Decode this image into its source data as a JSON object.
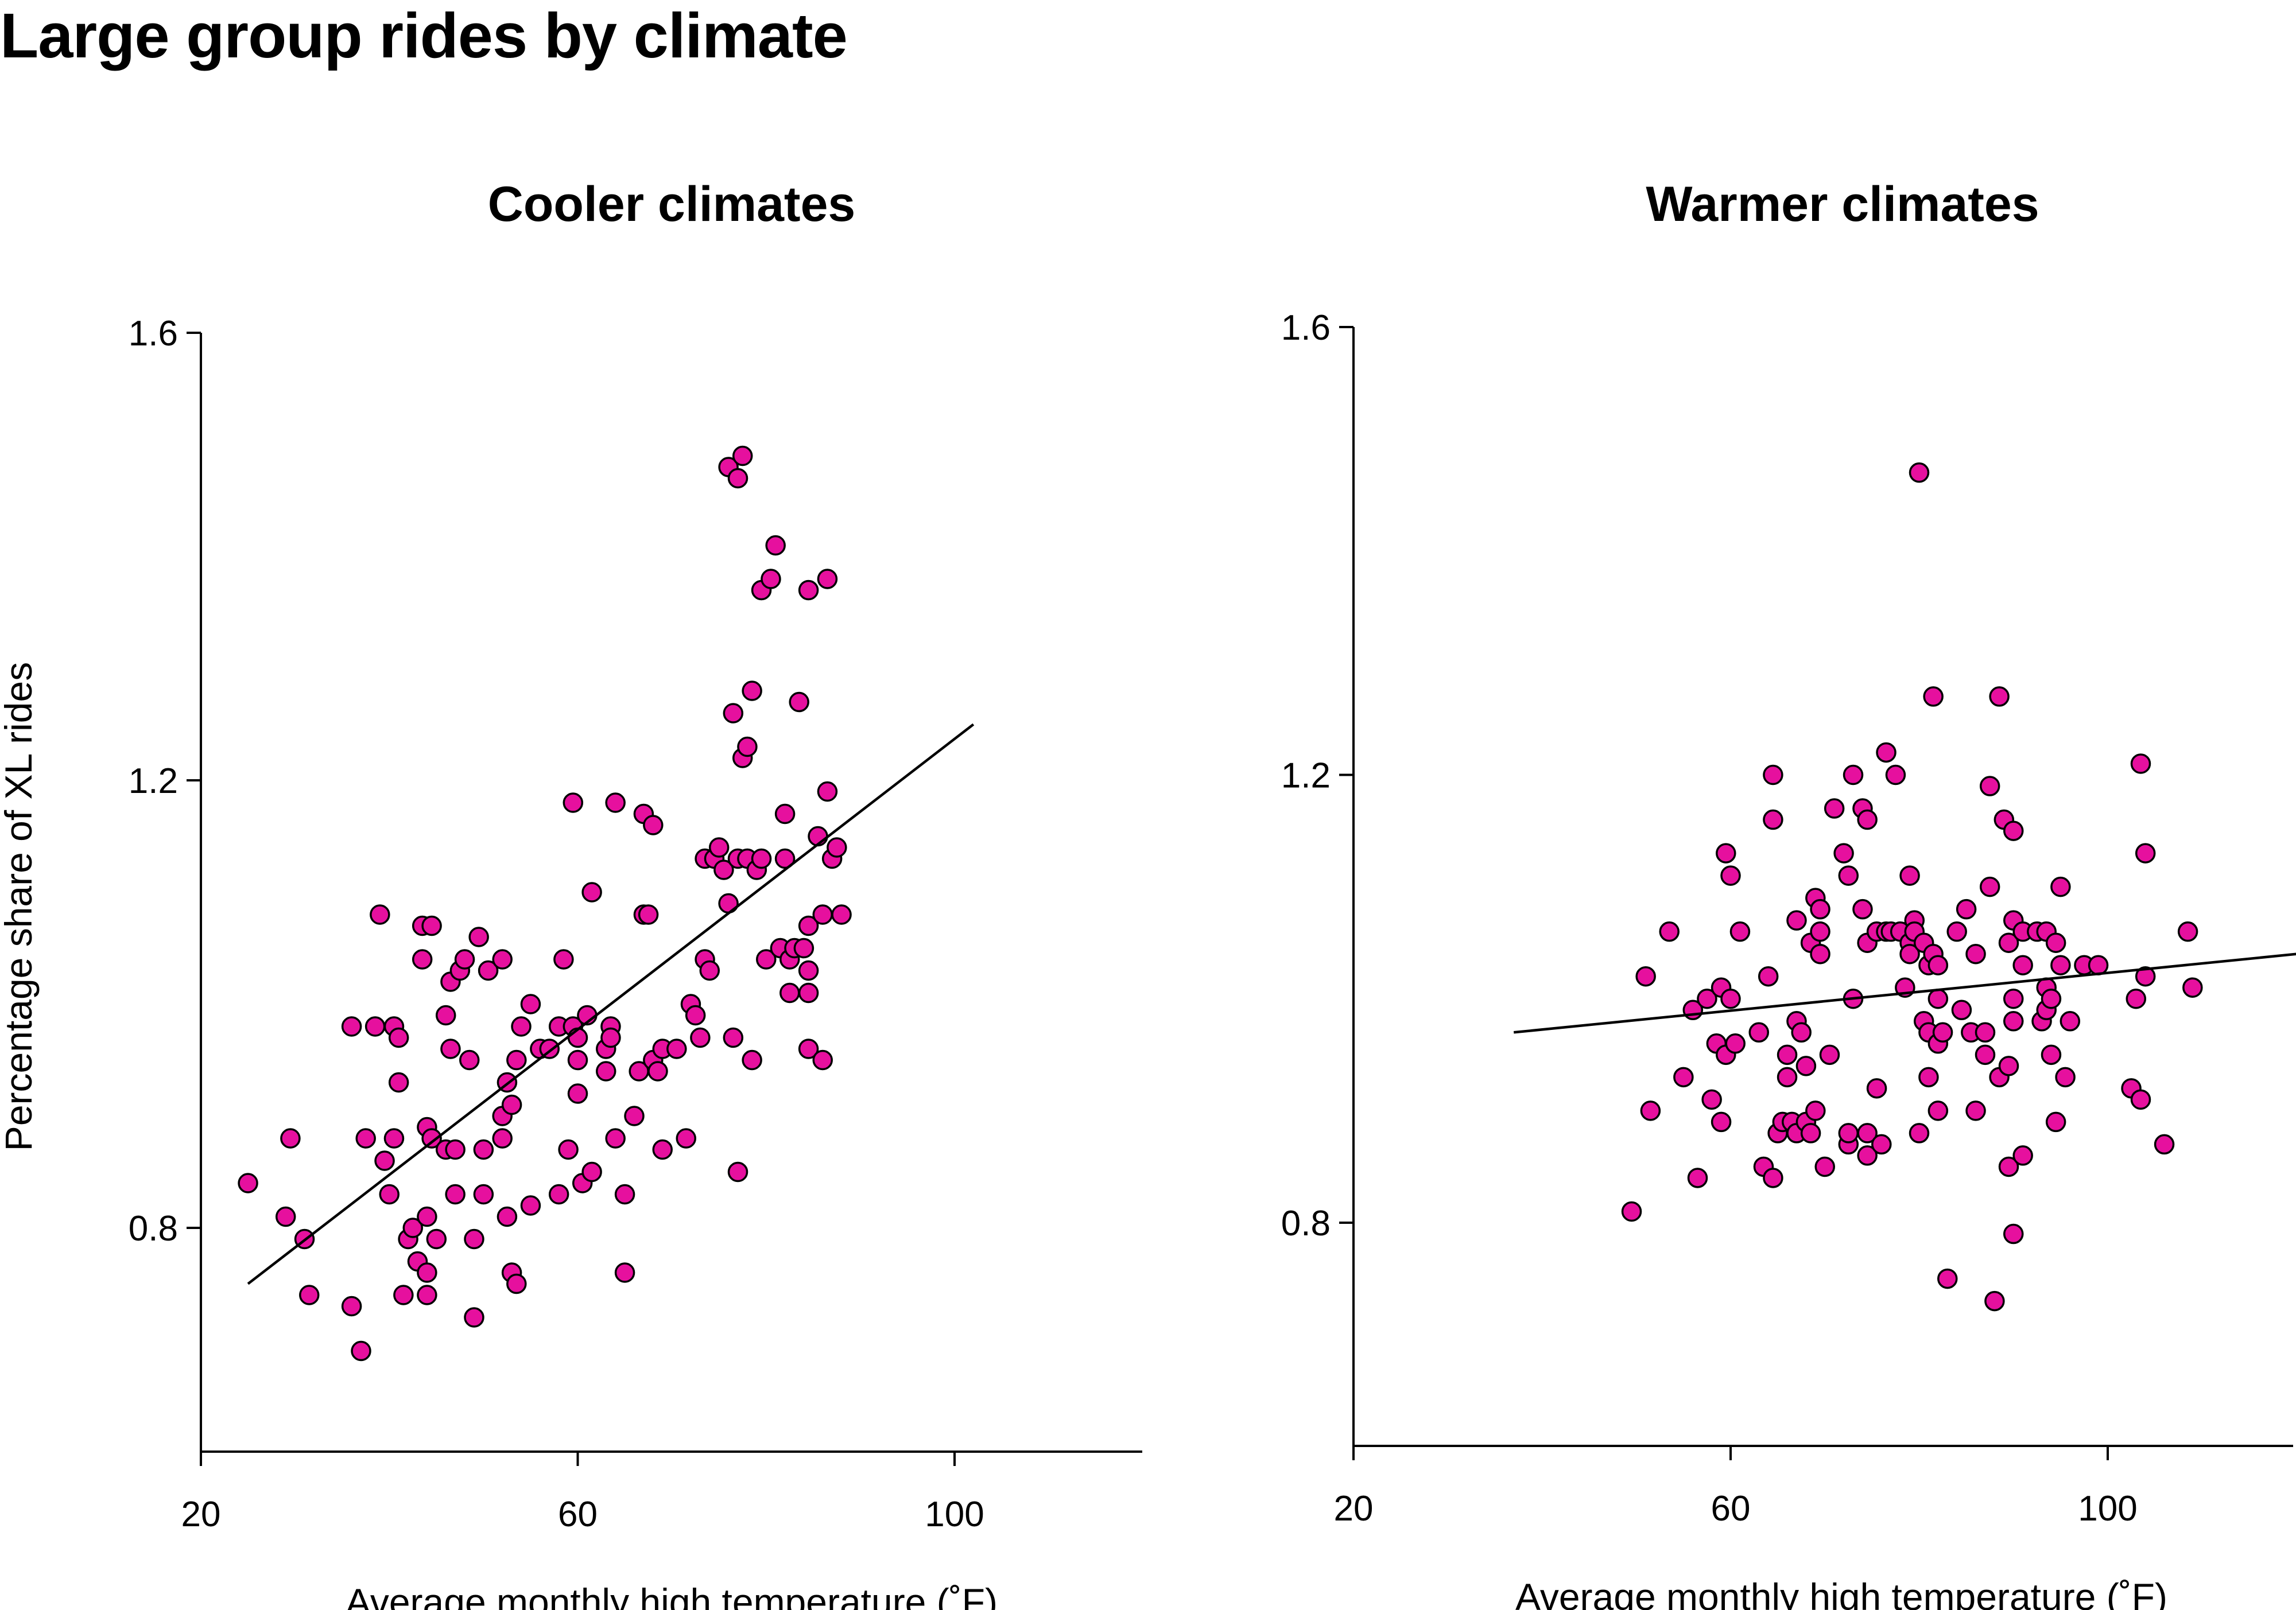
{
  "title": "Large group rides by climate",
  "chart_data": [
    {
      "type": "scatter",
      "title": "Cooler climates",
      "xlabel": "Average monthly high temperature (˚F)",
      "ylabel": "Percentage share of XL rides",
      "xlim": [
        20,
        120
      ],
      "ylim": [
        0.6,
        1.6
      ],
      "xticks": [
        20,
        60,
        100
      ],
      "yticks": [
        0.8,
        1.2,
        1.6
      ],
      "point_color": "#e6109e",
      "trend_line": {
        "x": [
          25,
          102
        ],
        "y": [
          0.75,
          1.25
        ]
      },
      "points": [
        [
          25,
          0.84
        ],
        [
          29,
          0.81
        ],
        [
          29.5,
          0.88
        ],
        [
          31,
          0.79
        ],
        [
          31.5,
          0.74
        ],
        [
          36,
          0.98
        ],
        [
          36,
          0.73
        ],
        [
          37,
          0.69
        ],
        [
          37.5,
          0.88
        ],
        [
          38.5,
          0.98
        ],
        [
          39,
          1.08
        ],
        [
          39.5,
          0.86
        ],
        [
          40,
          0.83
        ],
        [
          40.5,
          0.98
        ],
        [
          40.5,
          0.88
        ],
        [
          41,
          0.93
        ],
        [
          41,
          0.97
        ],
        [
          41.5,
          0.74
        ],
        [
          42,
          0.79
        ],
        [
          42.5,
          0.8
        ],
        [
          43,
          0.77
        ],
        [
          43.5,
          1.04
        ],
        [
          43.5,
          1.07
        ],
        [
          44,
          0.81
        ],
        [
          44,
          0.89
        ],
        [
          44,
          0.76
        ],
        [
          44,
          0.74
        ],
        [
          44.5,
          1.07
        ],
        [
          44.5,
          0.88
        ],
        [
          45,
          0.79
        ],
        [
          46,
          0.87
        ],
        [
          46,
          0.99
        ],
        [
          46.5,
          1.02
        ],
        [
          46.5,
          0.96
        ],
        [
          47,
          0.83
        ],
        [
          47,
          0.87
        ],
        [
          47.5,
          1.03
        ],
        [
          48,
          1.04
        ],
        [
          48.5,
          0.95
        ],
        [
          49,
          0.79
        ],
        [
          49,
          0.72
        ],
        [
          49.5,
          1.06
        ],
        [
          50,
          0.83
        ],
        [
          50,
          0.87
        ],
        [
          50.5,
          1.03
        ],
        [
          52,
          0.88
        ],
        [
          52,
          0.9
        ],
        [
          52,
          1.04
        ],
        [
          52.5,
          0.93
        ],
        [
          52.5,
          0.81
        ],
        [
          53,
          0.76
        ],
        [
          53,
          0.91
        ],
        [
          53.5,
          0.75
        ],
        [
          53.5,
          0.95
        ],
        [
          54,
          0.98
        ],
        [
          55,
          1.0
        ],
        [
          55,
          0.82
        ],
        [
          56,
          0.96
        ],
        [
          57,
          0.96
        ],
        [
          58,
          0.98
        ],
        [
          58,
          0.83
        ],
        [
          58.5,
          1.04
        ],
        [
          59,
          0.87
        ],
        [
          59.5,
          0.98
        ],
        [
          59.5,
          1.18
        ],
        [
          60,
          0.97
        ],
        [
          60,
          0.92
        ],
        [
          60,
          0.95
        ],
        [
          60.5,
          0.84
        ],
        [
          61,
          0.99
        ],
        [
          61.5,
          0.85
        ],
        [
          61.5,
          1.1
        ],
        [
          63,
          0.94
        ],
        [
          63,
          0.96
        ],
        [
          63.5,
          0.98
        ],
        [
          63.5,
          0.97
        ],
        [
          64,
          1.18
        ],
        [
          64,
          0.88
        ],
        [
          65,
          0.83
        ],
        [
          65,
          0.76
        ],
        [
          66,
          0.9
        ],
        [
          66.5,
          0.94
        ],
        [
          67,
          1.08
        ],
        [
          67,
          1.17
        ],
        [
          67.5,
          1.08
        ],
        [
          68,
          1.16
        ],
        [
          68,
          0.95
        ],
        [
          68.5,
          0.94
        ],
        [
          69,
          0.96
        ],
        [
          69,
          0.87
        ],
        [
          70.5,
          0.96
        ],
        [
          71.5,
          0.88
        ],
        [
          72,
          1.0
        ],
        [
          72.5,
          0.99
        ],
        [
          73,
          0.97
        ],
        [
          73.5,
          1.04
        ],
        [
          73.5,
          1.13
        ],
        [
          74,
          1.03
        ],
        [
          74.5,
          1.13
        ],
        [
          75,
          1.14
        ],
        [
          75.5,
          1.12
        ],
        [
          76,
          1.09
        ],
        [
          76,
          1.48
        ],
        [
          76.5,
          1.26
        ],
        [
          76.5,
          0.97
        ],
        [
          77,
          1.47
        ],
        [
          77,
          0.85
        ],
        [
          77,
          1.13
        ],
        [
          77.5,
          1.22
        ],
        [
          77.5,
          1.49
        ],
        [
          78,
          1.23
        ],
        [
          78,
          1.13
        ],
        [
          78.5,
          1.28
        ],
        [
          78.5,
          0.95
        ],
        [
          79,
          1.12
        ],
        [
          79.5,
          1.37
        ],
        [
          79.5,
          1.13
        ],
        [
          80,
          1.04
        ],
        [
          80.5,
          1.38
        ],
        [
          81,
          1.41
        ],
        [
          81.5,
          1.05
        ],
        [
          82,
          1.13
        ],
        [
          82,
          1.17
        ],
        [
          82.5,
          1.04
        ],
        [
          82.5,
          1.01
        ],
        [
          83,
          1.05
        ],
        [
          83.5,
          1.27
        ],
        [
          84,
          1.05
        ],
        [
          84.5,
          1.37
        ],
        [
          84.5,
          1.07
        ],
        [
          84.5,
          1.03
        ],
        [
          84.5,
          1.01
        ],
        [
          84.5,
          0.96
        ],
        [
          85.5,
          1.15
        ],
        [
          86,
          0.95
        ],
        [
          86,
          1.08
        ],
        [
          86.5,
          1.19
        ],
        [
          86.5,
          1.38
        ],
        [
          87,
          1.13
        ],
        [
          87.5,
          1.14
        ],
        [
          88,
          1.08
        ]
      ]
    },
    {
      "type": "scatter",
      "title": "Warmer climates",
      "xlabel": "Average monthly high temperature (˚F)",
      "ylabel": "",
      "xlim": [
        20,
        120
      ],
      "ylim": [
        0.6,
        1.6
      ],
      "xticks": [
        20,
        60,
        100
      ],
      "yticks": [
        0.8,
        1.2,
        1.6
      ],
      "point_color": "#e6109e",
      "trend_line": {
        "x": [
          37,
          120
        ],
        "y": [
          0.97,
          1.04
        ]
      },
      "points": [
        [
          49.5,
          0.81
        ],
        [
          51,
          1.02
        ],
        [
          51.5,
          0.9
        ],
        [
          53.5,
          1.06
        ],
        [
          55,
          0.93
        ],
        [
          56,
          0.99
        ],
        [
          56.5,
          0.84
        ],
        [
          57.5,
          1.0
        ],
        [
          58,
          0.91
        ],
        [
          58.5,
          0.96
        ],
        [
          59,
          0.89
        ],
        [
          59,
          1.01
        ],
        [
          59.5,
          1.13
        ],
        [
          59.5,
          0.95
        ],
        [
          60,
          1.11
        ],
        [
          60,
          1.0
        ],
        [
          60.5,
          0.96
        ],
        [
          61,
          1.06
        ],
        [
          63,
          0.97
        ],
        [
          63.5,
          0.85
        ],
        [
          64,
          1.02
        ],
        [
          64.5,
          1.2
        ],
        [
          64.5,
          1.16
        ],
        [
          64.5,
          0.84
        ],
        [
          65,
          0.88
        ],
        [
          65.5,
          0.89
        ],
        [
          66,
          0.95
        ],
        [
          66,
          0.93
        ],
        [
          66.5,
          0.89
        ],
        [
          67,
          1.07
        ],
        [
          67,
          0.98
        ],
        [
          67,
          0.88
        ],
        [
          67.5,
          0.97
        ],
        [
          68,
          0.89
        ],
        [
          68,
          0.94
        ],
        [
          68.5,
          1.05
        ],
        [
          68.5,
          0.88
        ],
        [
          69,
          1.09
        ],
        [
          69,
          0.9
        ],
        [
          69.5,
          1.08
        ],
        [
          69.5,
          1.06
        ],
        [
          69.5,
          1.04
        ],
        [
          70,
          0.85
        ],
        [
          70.5,
          0.95
        ],
        [
          71,
          1.17
        ],
        [
          72,
          1.13
        ],
        [
          72.5,
          1.11
        ],
        [
          72.5,
          0.87
        ],
        [
          72.5,
          0.88
        ],
        [
          73,
          1.0
        ],
        [
          73,
          1.2
        ],
        [
          74,
          1.17
        ],
        [
          74,
          1.08
        ],
        [
          74.5,
          1.16
        ],
        [
          74.5,
          1.05
        ],
        [
          74.5,
          0.88
        ],
        [
          74.5,
          0.86
        ],
        [
          75.5,
          1.06
        ],
        [
          75.5,
          0.92
        ],
        [
          76,
          0.87
        ],
        [
          76.5,
          1.22
        ],
        [
          76.5,
          1.06
        ],
        [
          77,
          1.06
        ],
        [
          77.5,
          1.2
        ],
        [
          78,
          1.06
        ],
        [
          78.5,
          1.01
        ],
        [
          79,
          1.11
        ],
        [
          79,
          1.05
        ],
        [
          79,
          1.04
        ],
        [
          79.5,
          1.07
        ],
        [
          79.5,
          1.06
        ],
        [
          80,
          1.47
        ],
        [
          80,
          0.88
        ],
        [
          80.5,
          1.05
        ],
        [
          80.5,
          0.98
        ],
        [
          81,
          1.03
        ],
        [
          81,
          0.97
        ],
        [
          81,
          0.93
        ],
        [
          81.5,
          1.27
        ],
        [
          81.5,
          1.04
        ],
        [
          82,
          1.03
        ],
        [
          82,
          1.0
        ],
        [
          82,
          0.96
        ],
        [
          82,
          0.9
        ],
        [
          82.5,
          0.97
        ],
        [
          83,
          0.75
        ],
        [
          84,
          1.06
        ],
        [
          84.5,
          0.99
        ],
        [
          85,
          1.08
        ],
        [
          85.5,
          0.97
        ],
        [
          86,
          0.9
        ],
        [
          86,
          1.04
        ],
        [
          87,
          0.95
        ],
        [
          87,
          0.97
        ],
        [
          87.5,
          1.19
        ],
        [
          87.5,
          1.1
        ],
        [
          88,
          0.73
        ],
        [
          88.5,
          1.27
        ],
        [
          88.5,
          0.93
        ],
        [
          89,
          1.16
        ],
        [
          89.5,
          1.05
        ],
        [
          89.5,
          0.94
        ],
        [
          89.5,
          0.85
        ],
        [
          90,
          1.15
        ],
        [
          90,
          1.07
        ],
        [
          90,
          1.0
        ],
        [
          90,
          0.98
        ],
        [
          90,
          0.79
        ],
        [
          91,
          1.06
        ],
        [
          91,
          1.03
        ],
        [
          91,
          0.86
        ],
        [
          92.5,
          1.06
        ],
        [
          93,
          0.98
        ],
        [
          93.5,
          1.06
        ],
        [
          93.5,
          1.01
        ],
        [
          93.5,
          0.99
        ],
        [
          94,
          0.95
        ],
        [
          94,
          1.0
        ],
        [
          94.5,
          1.05
        ],
        [
          94.5,
          0.89
        ],
        [
          95,
          1.03
        ],
        [
          95,
          1.1
        ],
        [
          95.5,
          0.93
        ],
        [
          96,
          0.98
        ],
        [
          97.5,
          1.03
        ],
        [
          99,
          1.03
        ],
        [
          102.5,
          0.92
        ],
        [
          103,
          1.0
        ],
        [
          103.5,
          1.21
        ],
        [
          103.5,
          0.91
        ],
        [
          104,
          1.13
        ],
        [
          104,
          1.02
        ],
        [
          106,
          0.87
        ],
        [
          108.5,
          1.06
        ],
        [
          109,
          1.01
        ]
      ]
    }
  ]
}
